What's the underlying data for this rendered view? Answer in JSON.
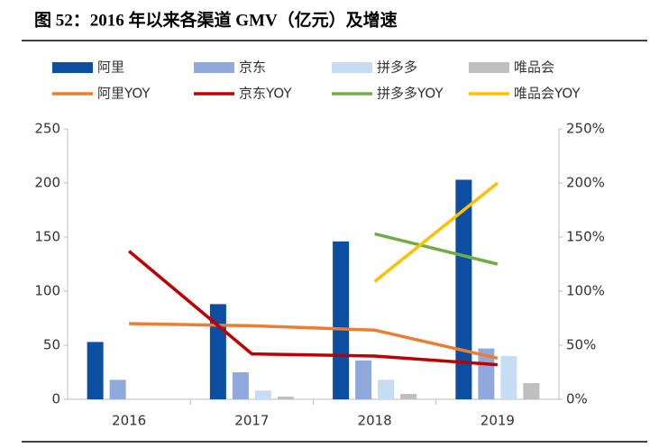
{
  "chart_data": {
    "type": "bar",
    "title": "图 52：2016 年以来各渠道 GMV（亿元）及增速",
    "categories": [
      "2016",
      "2017",
      "2018",
      "2019"
    ],
    "series": [
      {
        "name": "阿里",
        "color": "#0b4ea2",
        "values": [
          53,
          88,
          146,
          203
        ]
      },
      {
        "name": "京东",
        "color": "#8fa9dc",
        "values": [
          18,
          25,
          36,
          47
        ]
      },
      {
        "name": "拼多多",
        "color": "#c5dcf3",
        "values": [
          null,
          8,
          18,
          40
        ]
      },
      {
        "name": "唯品会",
        "color": "#bfbfbf",
        "values": [
          null,
          2.5,
          5,
          15
        ]
      },
      {
        "name": "阿里YOY",
        "color": "#ed7d31",
        "type": "line",
        "axis": "y2",
        "values": [
          70,
          68,
          64,
          38
        ]
      },
      {
        "name": "京东YOY",
        "color": "#c00000",
        "type": "line",
        "axis": "y2",
        "values": [
          137,
          42,
          40,
          32
        ]
      },
      {
        "name": "拼多多YOY",
        "color": "#70ad47",
        "type": "line",
        "axis": "y2",
        "values": [
          null,
          null,
          153,
          125
        ]
      },
      {
        "name": "唯品会YOY",
        "color": "#ffc000",
        "type": "line",
        "axis": "y2",
        "values": [
          null,
          null,
          109,
          200
        ]
      }
    ],
    "ylim": [
      0,
      250
    ],
    "yticks": [
      0,
      50,
      100,
      150,
      200,
      250
    ],
    "y2lim": [
      0,
      250
    ],
    "y2ticks": [
      {
        "value": 0,
        "label": "0%"
      },
      {
        "value": 50,
        "label": "50%"
      },
      {
        "value": 100,
        "label": "100%"
      },
      {
        "value": 150,
        "label": "150%"
      },
      {
        "value": 200,
        "label": "200%"
      },
      {
        "value": 250,
        "label": "250%"
      }
    ]
  }
}
